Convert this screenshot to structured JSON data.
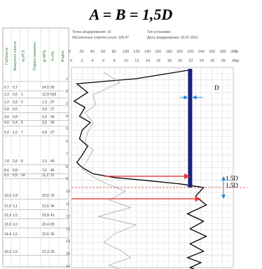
{
  "title": "A = B = 1,5D",
  "header": {
    "probe_point": "Точка зондирования: 10",
    "abs_mark": "Абсолютные отметки устья: 108,47",
    "rig_type": "Тип установки:",
    "date": "Дата зондирования: 30.07.2012"
  },
  "columns": [
    "Глубина м",
    "Мощность слоя м",
    "№ ИГЭ",
    "Разрез скважины",
    "qc МПа",
    "fs кПа",
    "Индекс"
  ],
  "rows": [
    {
      "depth": "0,7",
      "thick": "0,7",
      "ige": "",
      "qc": "14,5",
      "fs": "93"
    },
    {
      "depth": "1,3",
      "thick": "0,6",
      "ige": "1",
      "qc": "12,0",
      "fs": "623"
    },
    {
      "depth": "2,2",
      "thick": "0,9",
      "ige": "2",
      "qc": "1,3",
      "fs": "37"
    },
    {
      "depth": "2,8",
      "thick": "0,6",
      "ige": "",
      "qc": "3,9",
      "fs": "27"
    },
    {
      "depth": "3,6",
      "thick": "0,8",
      "ige": "",
      "qc": "2,6",
      "fs": "36"
    },
    {
      "depth": "4,0",
      "thick": "0,4",
      "ige": "6",
      "qc": "3,0",
      "fs": "36"
    },
    {
      "depth": "5,0",
      "thick": "1,0",
      "ige": "7",
      "qc": "0,8",
      "fs": "27"
    },
    {
      "depth": "7,8",
      "thick": "2,8",
      "ige": "8",
      "qc": "1,3",
      "fs": "40"
    },
    {
      "depth": "8,6",
      "thick": "0,8",
      "ige": "",
      "qc": "7,6",
      "fs": "46"
    },
    {
      "depth": "9,1",
      "thick": "0,5",
      "ige": "14",
      "qc": "11,2",
      "fs": "31"
    },
    {
      "depth": "10,9",
      "thick": "1,8",
      "ige": "",
      "qc": "22,6",
      "fs": "75"
    },
    {
      "depth": "12,0",
      "thick": "1,1",
      "ige": "",
      "qc": "21,6",
      "fs": "34"
    },
    {
      "depth": "12,9",
      "thick": "1,0",
      "ige": "",
      "qc": "23,9",
      "fs": "41"
    },
    {
      "depth": "13,9",
      "thick": "1,0",
      "ige": "",
      "qc": "22,4",
      "fs": "83"
    },
    {
      "depth": "14,4",
      "thick": "1,5",
      "ige": "",
      "qc": "22,6",
      "fs": "26"
    },
    {
      "depth": "15,9",
      "thick": "1,5",
      "ige": "",
      "qc": "21,3",
      "fs": "25"
    }
  ],
  "axes": {
    "fs_ticks": [
      "0",
      "20",
      "40",
      "60",
      "80",
      "100",
      "120",
      "140",
      "160",
      "180",
      "200",
      "220",
      "240",
      "260",
      "280",
      "300"
    ],
    "fs_unit": "fs",
    "qc_ticks": [
      "0",
      "2",
      "4",
      "6",
      "8",
      "10",
      "12",
      "14",
      "16",
      "18",
      "20",
      "22",
      "24",
      "26",
      "28",
      "30"
    ],
    "qc_unit": "qc",
    "depth_ticks": [
      "1",
      "2",
      "3",
      "4",
      "5",
      "6",
      "7",
      "8",
      "9",
      "10",
      "11",
      "12",
      "13",
      "14",
      "15",
      "16"
    ]
  },
  "annotations": {
    "pile_diameter": "D",
    "above_tip": "1.5D",
    "below_tip": "1.5D"
  },
  "colors": {
    "pile": "#1a237e",
    "marker": "#e53935",
    "dimension": "#1e88e5",
    "qc_curve": "#000000",
    "fs_curve": "#9e9e9e",
    "grid": "#d7d7d7",
    "headers": "#2e7d32"
  },
  "chart_data": [
    {
      "type": "line",
      "title": "",
      "xlabel": "qc",
      "ylabel": "",
      "xlim": [
        0,
        30
      ],
      "ylim": [
        0,
        16
      ],
      "y_reversed": true,
      "grid": true,
      "series": [
        {
          "x": [
            22.0,
            12.0,
            1.0,
            3.0,
            0.5,
            2.5,
            1.5,
            3.5,
            2.0,
            1.5,
            3.0,
            2.0,
            1.0,
            2.0,
            4.0,
            8.0,
            13.0,
            20.0,
            24.5,
            23.0,
            25.0,
            21.5,
            24.5,
            22.0,
            25.0,
            22.0,
            24.5,
            21.5,
            24.0,
            22.0,
            24.0
          ],
          "y": [
            0.2,
            0.9,
            1.3,
            2.0,
            2.7,
            3.2,
            3.9,
            4.4,
            5.0,
            5.7,
            6.3,
            7.0,
            7.6,
            8.0,
            8.5,
            8.8,
            9.0,
            9.3,
            9.6,
            10.3,
            11.0,
            11.7,
            12.3,
            12.9,
            13.5,
            14.1,
            14.7,
            15.2,
            15.6,
            16.0,
            16.4
          ]
        },
        {
          "x": [
            6.0,
            9.0,
            4.0,
            4.5,
            2.5,
            4.0,
            3.0,
            2.5,
            4.0,
            3.0,
            2.0,
            3.5,
            6.0,
            10.0,
            7.0,
            11.0,
            5.0,
            12.0,
            8.0,
            6.0,
            9.0,
            11.0,
            7.0,
            10.0
          ],
          "y": [
            0.4,
            1.2,
            2.2,
            3.0,
            3.6,
            4.4,
            5.2,
            6.0,
            6.6,
            7.4,
            8.1,
            8.6,
            9.2,
            9.9,
            10.6,
            11.2,
            11.9,
            12.6,
            13.3,
            14.0,
            14.6,
            15.2,
            15.8,
            16.4
          ]
        }
      ]
    }
  ]
}
